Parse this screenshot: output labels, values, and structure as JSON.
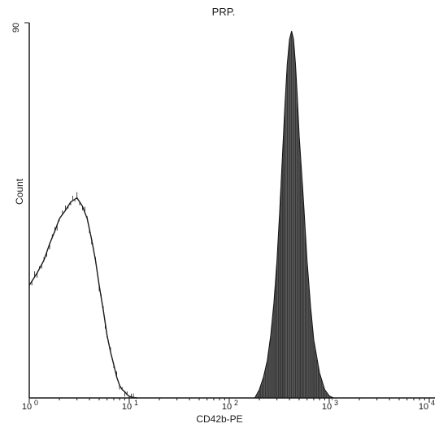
{
  "chart_data": {
    "type": "area",
    "title": "PRP.",
    "xlabel": "CD42b-PE",
    "ylabel": "Count",
    "xscale": "log",
    "xlim": [
      1,
      10000
    ],
    "ylim": [
      0,
      90
    ],
    "y_tick_label": "90",
    "x_ticks": [
      {
        "value": 1,
        "base": "10",
        "exp": "0"
      },
      {
        "value": 10,
        "base": "10",
        "exp": "1"
      },
      {
        "value": 100,
        "base": "10",
        "exp": "2"
      },
      {
        "value": 1000,
        "base": "10",
        "exp": "3"
      },
      {
        "value": 10000,
        "base": "10",
        "exp": "4"
      }
    ],
    "grid": false,
    "series": [
      {
        "style": "outline",
        "color": "#1a1a1a",
        "x": [
          1.0,
          1.2,
          1.4,
          1.6,
          1.8,
          2.0,
          2.3,
          2.6,
          3.0,
          3.4,
          3.8,
          4.2,
          4.6,
          5.0,
          5.5,
          6.0,
          6.5,
          7.0,
          7.5,
          8.0,
          8.5,
          9.0,
          9.5,
          10.0,
          11.0,
          12.0
        ],
        "values": [
          27,
          30,
          33,
          37,
          40,
          43,
          45,
          47,
          48,
          46,
          43,
          38,
          33,
          27,
          21,
          15,
          11,
          8,
          5,
          3,
          2,
          1.5,
          0.8,
          0.4,
          0.1,
          0
        ]
      },
      {
        "style": "filled",
        "color": "#3a3a3a",
        "x": [
          180,
          200,
          220,
          240,
          260,
          280,
          300,
          320,
          340,
          360,
          380,
          400,
          420,
          440,
          460,
          480,
          500,
          550,
          600,
          650,
          700,
          800,
          900,
          1000,
          1100
        ],
        "values": [
          0,
          2,
          5,
          9,
          15,
          23,
          33,
          45,
          58,
          70,
          80,
          86,
          88,
          86,
          80,
          72,
          63,
          48,
          33,
          22,
          14,
          6,
          2,
          0.5,
          0
        ]
      }
    ]
  }
}
